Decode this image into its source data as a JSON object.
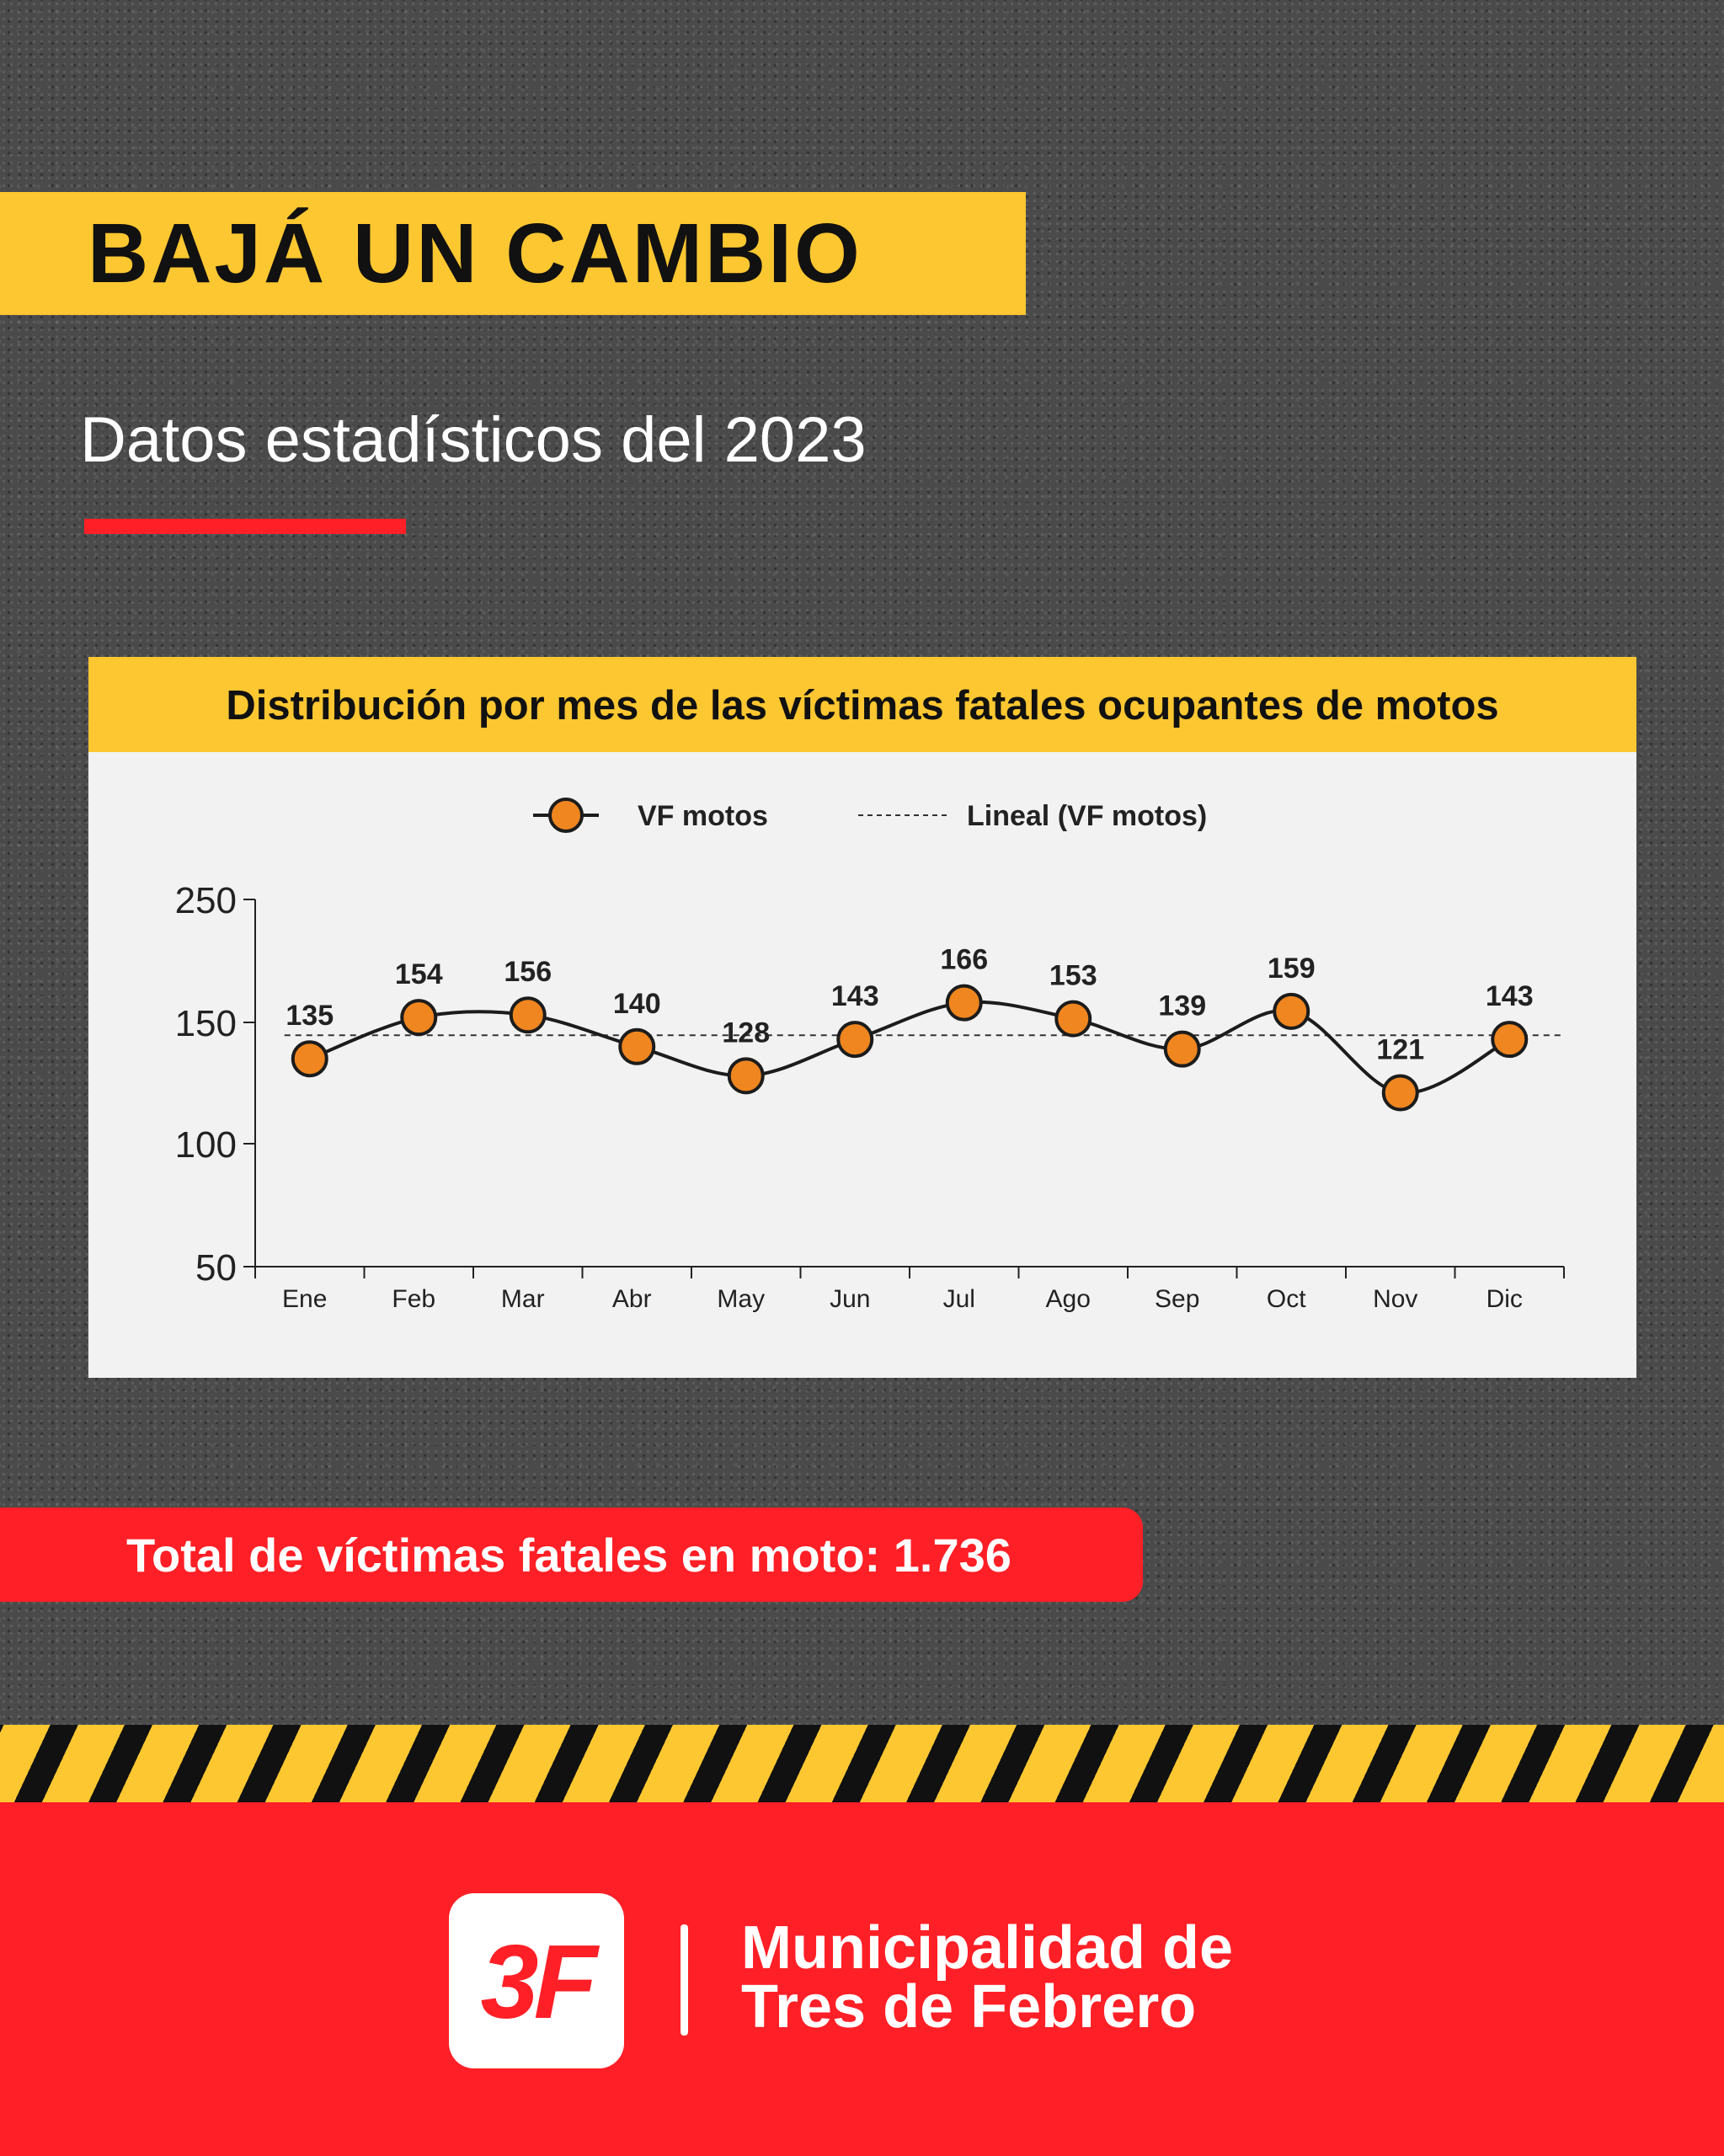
{
  "header": {
    "title": "BAJÁ UN CAMBIO",
    "subtitle": "Datos estadísticos del 2023"
  },
  "chart_data": {
    "type": "line",
    "title": "Distribución por mes de las víctimas fatales ocupantes de motos",
    "categories": [
      "Ene",
      "Feb",
      "Mar",
      "Abr",
      "May",
      "Jun",
      "Jul",
      "Ago",
      "Sep",
      "Oct",
      "Nov",
      "Dic"
    ],
    "series": [
      {
        "name": "VF motos",
        "values": [
          135,
          154,
          156,
          140,
          128,
          143,
          166,
          153,
          139,
          159,
          121,
          143
        ],
        "color": "#f0861f",
        "marker": "circle",
        "data_labels": true
      }
    ],
    "trendline": {
      "name": "Lineal (VF motos)",
      "value": 144.7,
      "style": "dashed"
    },
    "y_ticks": [
      250,
      150,
      100,
      50
    ],
    "ylim": [
      50,
      250
    ],
    "xlabel": "",
    "ylabel": "",
    "grid": false,
    "legend": "top-center"
  },
  "total": {
    "text": "Total de víctimas fatales en moto: 1.736"
  },
  "footer": {
    "logo_text": "3F",
    "org_line1": "Municipalidad de",
    "org_line2": "Tres de Febrero"
  },
  "colors": {
    "yellow": "#fdc731",
    "red": "#ff1f26",
    "marker_orange": "#f0861f",
    "asphalt": "#4a4a4a"
  }
}
